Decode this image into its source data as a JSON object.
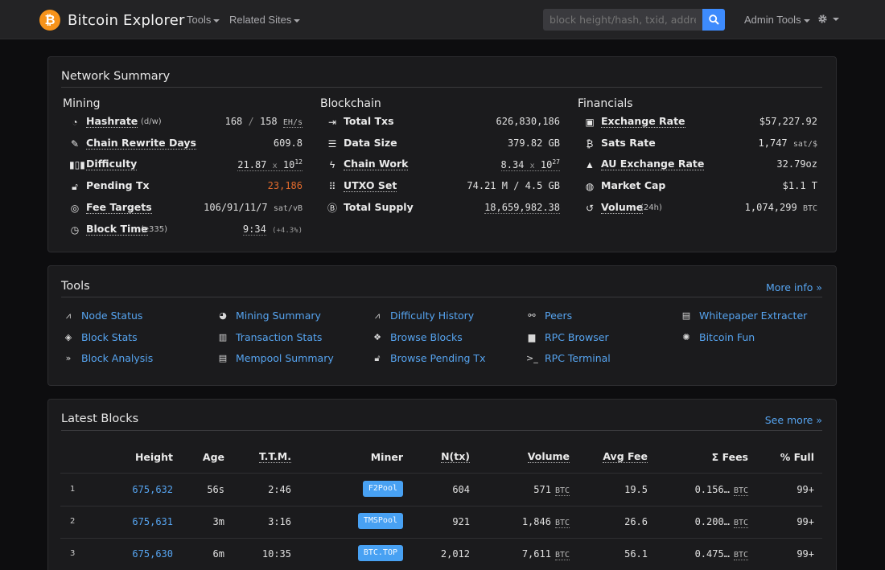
{
  "navbar": {
    "brand": "Bitcoin Explorer",
    "tools_label": "Tools",
    "related_label": "Related Sites",
    "search_placeholder": "block height/hash, txid, address",
    "admin_label": "Admin Tools"
  },
  "network_summary": {
    "title": "Network Summary",
    "mining": {
      "heading": "Mining",
      "hashrate": {
        "label": "Hashrate",
        "sub": "(d/w)",
        "v1": "168",
        "sep": "/",
        "v2": "158",
        "unit": "EH/s"
      },
      "rewrite": {
        "label": "Chain Rewrite Days",
        "value": "609.8"
      },
      "difficulty": {
        "label": "Difficulty",
        "mantissa": "21.87",
        "x": "x",
        "base": "10",
        "exp": "12"
      },
      "pending": {
        "label": "Pending Tx",
        "value": "23,186"
      },
      "fee_targets": {
        "label": "Fee Targets",
        "value": "106/91/11/7",
        "unit": "sat/vB"
      },
      "block_time": {
        "label": "Block Time",
        "sub": "(e335)",
        "value": "9:34",
        "delta": "(+4.3%)"
      }
    },
    "blockchain": {
      "heading": "Blockchain",
      "total_txs": {
        "label": "Total Txs",
        "value": "626,830,186"
      },
      "data_size": {
        "label": "Data Size",
        "value": "379.82",
        "unit": "GB"
      },
      "chain_work": {
        "label": "Chain Work",
        "mantissa": "8.34",
        "x": "x",
        "base": "10",
        "exp": "27"
      },
      "utxo": {
        "label": "UTXO Set",
        "value": "74.21 M / 4.5 GB"
      },
      "supply": {
        "label": "Total Supply",
        "value": "18,659,982.38"
      }
    },
    "financials": {
      "heading": "Financials",
      "exchange": {
        "label": "Exchange Rate",
        "value": "$57,227.92"
      },
      "sats": {
        "label": "Sats Rate",
        "value": "1,747",
        "unit": "sat/$"
      },
      "au": {
        "label": "AU Exchange Rate",
        "value": "32.79oz"
      },
      "cap": {
        "label": "Market Cap",
        "value": "$1.1 T"
      },
      "volume": {
        "label": "Volume",
        "sub": "(24h)",
        "value": "1,074,299",
        "unit": "BTC"
      }
    }
  },
  "tools": {
    "title": "Tools",
    "more": "More info »",
    "items": [
      {
        "label": "Node Status",
        "icon": "tower-icon"
      },
      {
        "label": "Mining Summary",
        "icon": "pie-icon"
      },
      {
        "label": "Difficulty History",
        "icon": "chart-icon"
      },
      {
        "label": "Peers",
        "icon": "sitemap-icon"
      },
      {
        "label": "Whitepaper Extracter",
        "icon": "file-icon"
      },
      {
        "label": "Block Stats",
        "icon": "layers-icon"
      },
      {
        "label": "Transaction Stats",
        "icon": "bar-chart-icon"
      },
      {
        "label": "Browse Blocks",
        "icon": "cubes-icon"
      },
      {
        "label": "RPC Browser",
        "icon": "book-icon"
      },
      {
        "label": "Bitcoin Fun",
        "icon": "sun-icon"
      },
      {
        "label": "Block Analysis",
        "icon": "double-chevron-icon"
      },
      {
        "label": "Mempool Summary",
        "icon": "list-icon"
      },
      {
        "label": "Browse Pending Tx",
        "icon": "unlock-icon"
      },
      {
        "label": "RPC Terminal",
        "icon": "terminal-icon"
      }
    ]
  },
  "latest_blocks": {
    "title": "Latest Blocks",
    "more": "See more »",
    "headers": [
      "Height",
      "Age",
      "T.T.M.",
      "Miner",
      "N(tx)",
      "Volume",
      "Avg Fee",
      "Σ Fees",
      "% Full"
    ],
    "rows": [
      {
        "idx": "1",
        "height": "675,632",
        "age": "56s",
        "ttm": "2:46",
        "miner": "F2Pool",
        "ntx": "604",
        "volume": "571",
        "avgfee": "19.5",
        "fees": "0.156…",
        "full": "99+"
      },
      {
        "idx": "2",
        "height": "675,631",
        "age": "3m",
        "ttm": "3:16",
        "miner": "TMSPool",
        "ntx": "921",
        "volume": "1,846",
        "avgfee": "26.6",
        "fees": "0.200…",
        "full": "99+"
      },
      {
        "idx": "3",
        "height": "675,630",
        "age": "6m",
        "ttm": "10:35",
        "miner": "BTC.TOP",
        "ntx": "2,012",
        "volume": "7,611",
        "avgfee": "56.1",
        "fees": "0.475…",
        "full": "99+"
      }
    ],
    "unit": "BTC"
  },
  "colors": {
    "accent": "#3d8bfd",
    "link": "#56a4f0",
    "bitcoin": "#f7931a",
    "pending": "#e06a2c",
    "good": "#3bb44a"
  }
}
